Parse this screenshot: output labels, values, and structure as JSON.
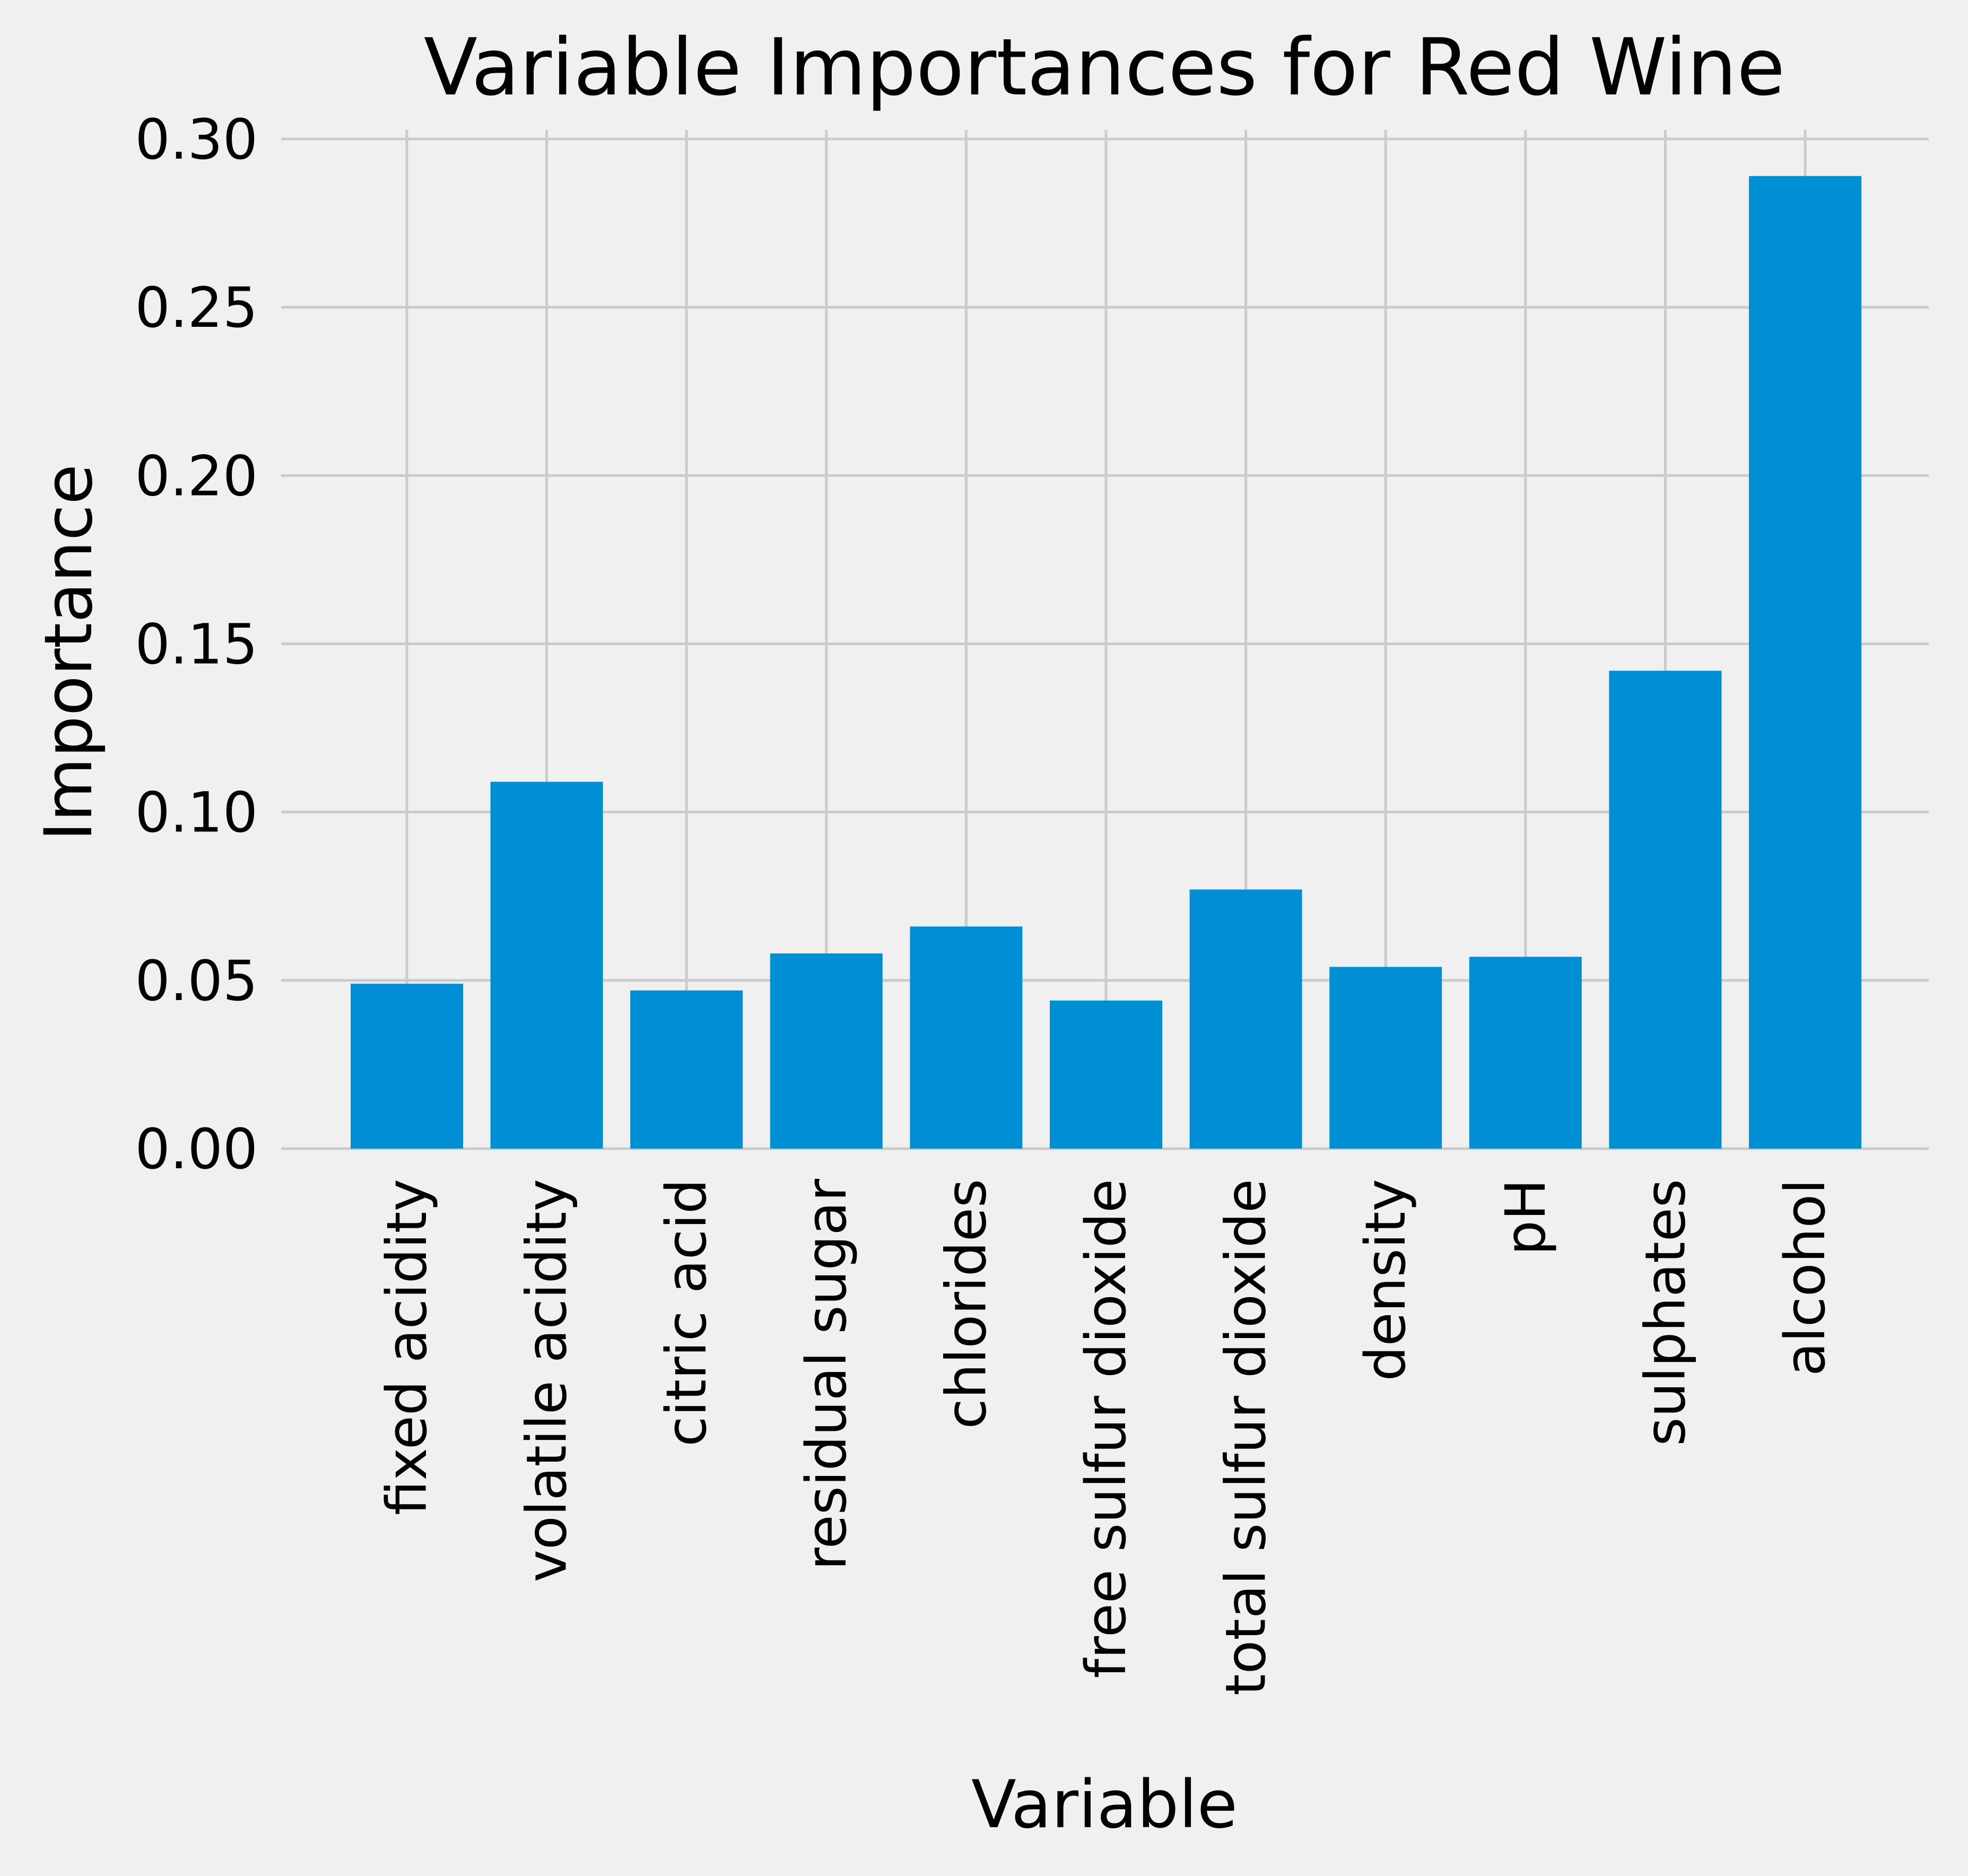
{
  "chart_data": {
    "type": "bar",
    "title": "Variable Importances for Red Wine",
    "xlabel": "Variable",
    "ylabel": "Importance",
    "categories": [
      "fixed acidity",
      "volatile acidity",
      "citric acid",
      "residual sugar",
      "chlorides",
      "free sulfur dioxide",
      "total sulfur dioxide",
      "density",
      "pH",
      "sulphates",
      "alcohol"
    ],
    "values": [
      0.049,
      0.109,
      0.047,
      0.058,
      0.066,
      0.044,
      0.077,
      0.054,
      0.057,
      0.142,
      0.289
    ],
    "ylim": [
      0,
      0.3
    ],
    "yticks": [
      0.0,
      0.05,
      0.1,
      0.15,
      0.2,
      0.25,
      0.3
    ],
    "ytick_labels": [
      "0.00",
      "0.05",
      "0.10",
      "0.15",
      "0.20",
      "0.25",
      "0.30"
    ],
    "grid": true,
    "style": "fivethirtyeight",
    "bar_color": "#008fd5",
    "background_color": "#f0f0f0",
    "grid_color": "#cbcbcb"
  }
}
